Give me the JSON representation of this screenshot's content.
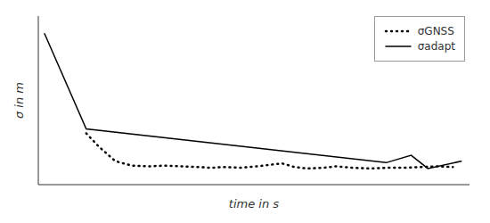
{
  "chart_data": {
    "type": "line",
    "title": "",
    "xlabel": "time in s",
    "ylabel": "σ in m",
    "series": [
      {
        "name": "σGNSS",
        "color": "#000000",
        "line_style": "dotted",
        "x": [
          1.0,
          1.3,
          1.7,
          2.1,
          2.5,
          2.9,
          3.3,
          3.7,
          4.0,
          4.3,
          4.7,
          5.1,
          5.4,
          5.7,
          6.0,
          6.3,
          6.7,
          7.0,
          7.4,
          7.8,
          8.2,
          8.6,
          9.0,
          9.4,
          9.8
        ],
        "values": [
          0.32,
          0.23,
          0.13,
          0.1,
          0.095,
          0.1,
          0.095,
          0.09,
          0.085,
          0.09,
          0.085,
          0.095,
          0.105,
          0.115,
          0.09,
          0.08,
          0.085,
          0.095,
          0.085,
          0.08,
          0.085,
          0.085,
          0.09,
          0.095,
          0.09
        ]
      },
      {
        "name": "σadapt",
        "color": "#000000",
        "line_style": "solid",
        "x": [
          0.0,
          1.0,
          8.2,
          8.8,
          9.2,
          10.0
        ],
        "values": [
          1.0,
          0.35,
          0.12,
          0.17,
          0.08,
          0.13
        ]
      }
    ],
    "xlim": [
      -0.15,
      10.2
    ],
    "ylim": [
      -0.03,
      1.12
    ],
    "xticks": [],
    "yticks": [],
    "tick_labels": false,
    "grid": false,
    "legend": "upper right"
  }
}
